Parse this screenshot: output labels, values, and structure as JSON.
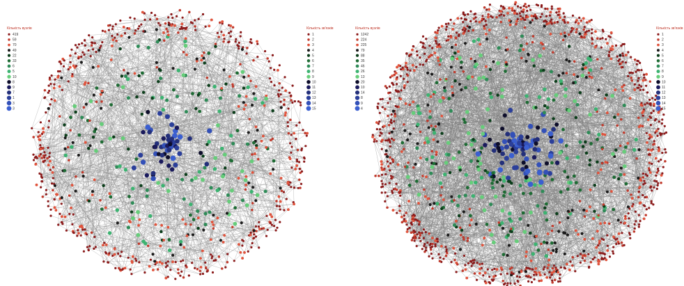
{
  "panels": [
    {
      "id": "left",
      "edge_color": "#8a8a8a",
      "legend_nodes": {
        "title": "Кількість вузлів",
        "items": [
          {
            "label": "419",
            "color": "#8b1a1a"
          },
          {
            "label": "59",
            "color": "#c0392b"
          },
          {
            "label": "70",
            "color": "#e0533c"
          },
          {
            "label": "49",
            "color": "#1a1a1a"
          },
          {
            "label": "22",
            "color": "#0b3d1a"
          },
          {
            "label": "33",
            "color": "#1e6b34"
          },
          {
            "label": "6",
            "color": "#2e8b57"
          },
          {
            "label": "5",
            "color": "#3cb371"
          },
          {
            "label": "10",
            "color": "#66cd7a"
          },
          {
            "label": "8",
            "color": "#0d0d2a"
          },
          {
            "label": "9",
            "color": "#1a1a5c"
          },
          {
            "label": "7",
            "color": "#232f7a"
          },
          {
            "label": "1",
            "color": "#2b3f9a"
          },
          {
            "label": "3",
            "color": "#3350b8"
          },
          {
            "label": "3",
            "color": "#3b5fd0"
          }
        ]
      },
      "legend_degree": {
        "title": "Кількість зв'язків",
        "items": [
          {
            "label": "1",
            "color": "#8b1a1a"
          },
          {
            "label": "2",
            "color": "#c0392b"
          },
          {
            "label": "3",
            "color": "#e0533c"
          },
          {
            "label": "4",
            "color": "#1a1a1a"
          },
          {
            "label": "5",
            "color": "#0b3d1a"
          },
          {
            "label": "6",
            "color": "#1e6b34"
          },
          {
            "label": "7",
            "color": "#2e8b57"
          },
          {
            "label": "8",
            "color": "#3cb371"
          },
          {
            "label": "9",
            "color": "#66cd7a"
          },
          {
            "label": "10",
            "color": "#0d0d2a"
          },
          {
            "label": "11",
            "color": "#1a1a5c"
          },
          {
            "label": "12",
            "color": "#232f7a"
          },
          {
            "label": "13",
            "color": "#2b3f9a"
          },
          {
            "label": "14",
            "color": "#3350b8"
          },
          {
            "label": "15",
            "color": "#3b5fd0"
          }
        ]
      }
    },
    {
      "id": "right",
      "edge_color": "#7f7f7f",
      "legend_nodes": {
        "title": "Кількість вузлів",
        "items": [
          {
            "label": "1242",
            "color": "#8b1a1a"
          },
          {
            "label": "224",
            "color": "#c0392b"
          },
          {
            "label": "225",
            "color": "#e0533c"
          },
          {
            "label": "79",
            "color": "#1a1a1a"
          },
          {
            "label": "88",
            "color": "#0b3d1a"
          },
          {
            "label": "35",
            "color": "#1e6b34"
          },
          {
            "label": "46",
            "color": "#2e8b57"
          },
          {
            "label": "26",
            "color": "#3cb371"
          },
          {
            "label": "13",
            "color": "#66cd7a"
          },
          {
            "label": "20",
            "color": "#0d0d2a"
          },
          {
            "label": "10",
            "color": "#1a1a5c"
          },
          {
            "label": "14",
            "color": "#232f7a"
          },
          {
            "label": "8",
            "color": "#2b3f9a"
          },
          {
            "label": "9",
            "color": "#3350b8"
          },
          {
            "label": "4",
            "color": "#3b5fd0"
          }
        ]
      },
      "legend_degree": {
        "title": "Кількість зв'язків",
        "items": [
          {
            "label": "1",
            "color": "#8b1a1a"
          },
          {
            "label": "2",
            "color": "#c0392b"
          },
          {
            "label": "3",
            "color": "#e0533c"
          },
          {
            "label": "4",
            "color": "#1a1a1a"
          },
          {
            "label": "5",
            "color": "#0b3d1a"
          },
          {
            "label": "6",
            "color": "#1e6b34"
          },
          {
            "label": "7",
            "color": "#2e8b57"
          },
          {
            "label": "8",
            "color": "#3cb371"
          },
          {
            "label": "9",
            "color": "#66cd7a"
          },
          {
            "label": "10",
            "color": "#0d0d2a"
          },
          {
            "label": "11",
            "color": "#1a1a5c"
          },
          {
            "label": "12",
            "color": "#232f7a"
          },
          {
            "label": "13",
            "color": "#2b3f9a"
          },
          {
            "label": "14",
            "color": "#3350b8"
          },
          {
            "label": "15",
            "color": "#3b5fd0"
          }
        ]
      }
    }
  ]
}
